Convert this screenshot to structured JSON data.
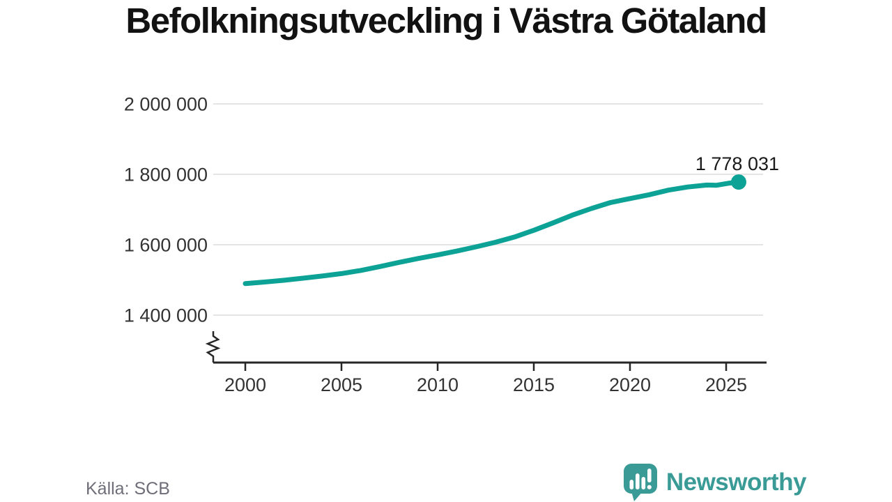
{
  "chart": {
    "title": "Befolkningsutveckling i Västra Götaland"
  },
  "footer": {
    "source": "Källa: SCB",
    "logo_text": "Newsworthy"
  },
  "colors": {
    "line": "#0ca296",
    "grid": "#e4e4e4",
    "axis": "#262626",
    "tick_text": "#333333",
    "end_label_text": "#1a1a1a",
    "muted_text": "#6e6e78",
    "logo_teal": "#3a9b96"
  },
  "chart_data": {
    "type": "line",
    "title": "Befolkningsutveckling i Västra Götaland",
    "xlabel": "",
    "ylabel": "",
    "xlim": [
      2000,
      2027
    ],
    "ylim": [
      1400000,
      2000000
    ],
    "y_axis_break": true,
    "grid": "horizontal",
    "legend": "none",
    "source": "Källa: SCB",
    "x_ticks": [
      2000,
      2005,
      2010,
      2015,
      2020,
      2025
    ],
    "y_ticks": [
      {
        "value": 1400000,
        "label": "1 400 000"
      },
      {
        "value": 1600000,
        "label": "1 600 000"
      },
      {
        "value": 1800000,
        "label": "1 800 000"
      },
      {
        "value": 2000000,
        "label": "2 000 000"
      }
    ],
    "series": [
      {
        "name": "Befolkning Västra Götaland",
        "points": [
          [
            2000,
            1489757
          ],
          [
            2001,
            1494000
          ],
          [
            2002,
            1499000
          ],
          [
            2003,
            1505000
          ],
          [
            2004,
            1511000
          ],
          [
            2005,
            1518000
          ],
          [
            2006,
            1527000
          ],
          [
            2007,
            1538000
          ],
          [
            2008,
            1550000
          ],
          [
            2009,
            1561000
          ],
          [
            2010,
            1571000
          ],
          [
            2011,
            1582000
          ],
          [
            2012,
            1594000
          ],
          [
            2013,
            1607000
          ],
          [
            2014,
            1622000
          ],
          [
            2015,
            1641000
          ],
          [
            2016,
            1662000
          ],
          [
            2017,
            1684000
          ],
          [
            2018,
            1703000
          ],
          [
            2019,
            1720000
          ],
          [
            2020,
            1731000
          ],
          [
            2021,
            1742000
          ],
          [
            2022,
            1755000
          ],
          [
            2023,
            1764000
          ],
          [
            2024,
            1769500
          ],
          [
            2024.5,
            1769000
          ],
          [
            2025.1,
            1774500
          ],
          [
            2025.65,
            1778031
          ]
        ]
      }
    ],
    "end_point": {
      "value": 1778031,
      "label": "1 778 031"
    }
  }
}
